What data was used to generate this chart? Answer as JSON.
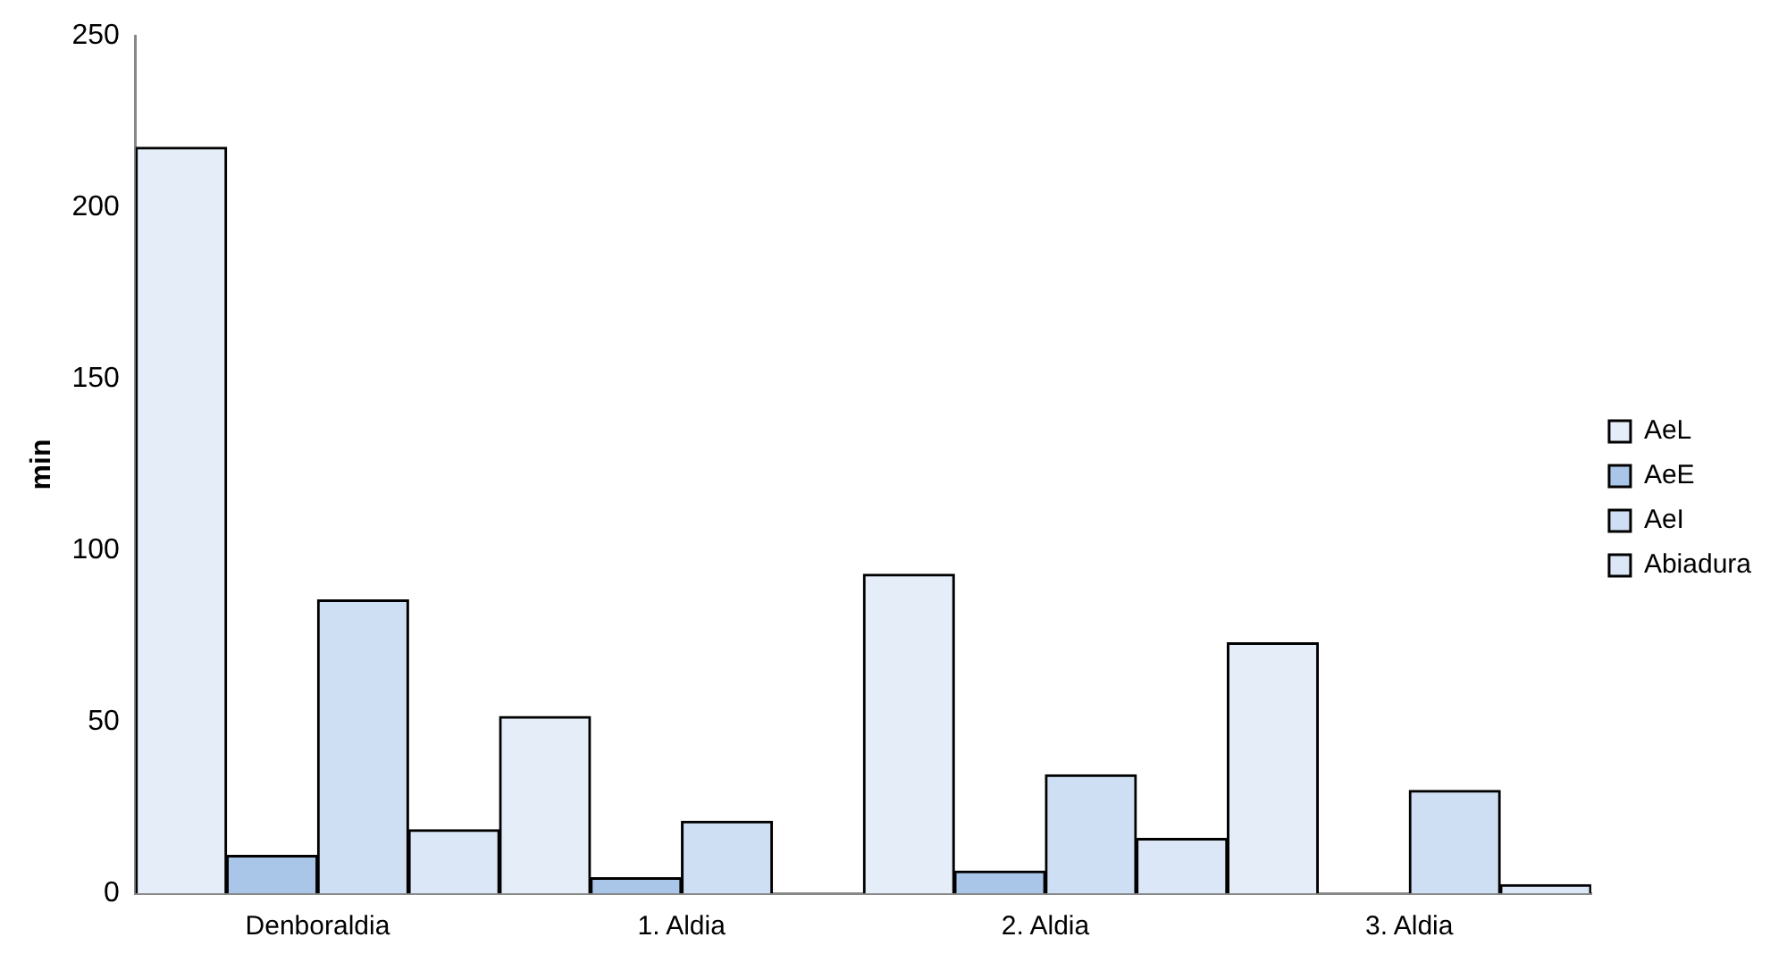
{
  "chart_data": {
    "type": "bar",
    "ylabel": "min",
    "categories": [
      "Denboraldia",
      "1. Aldia",
      "2. Aldia",
      "3. Aldia"
    ],
    "series": [
      {
        "name": "AeL",
        "color": "#e4edf8",
        "values": [
          217.5,
          51.5,
          93,
          73
        ]
      },
      {
        "name": "AeE",
        "color": "#a9c5e8",
        "values": [
          11,
          4.5,
          6.5,
          0
        ]
      },
      {
        "name": "AeI",
        "color": "#cfdff3",
        "values": [
          85.5,
          21,
          34.5,
          30
        ]
      },
      {
        "name": "Abiadura",
        "color": "#dbe7f6",
        "values": [
          18.5,
          0,
          16,
          2.5
        ]
      }
    ],
    "ylim": [
      0,
      250
    ],
    "yticks": [
      0,
      50,
      100,
      150,
      200,
      250
    ],
    "grid": false,
    "legend": "right"
  }
}
